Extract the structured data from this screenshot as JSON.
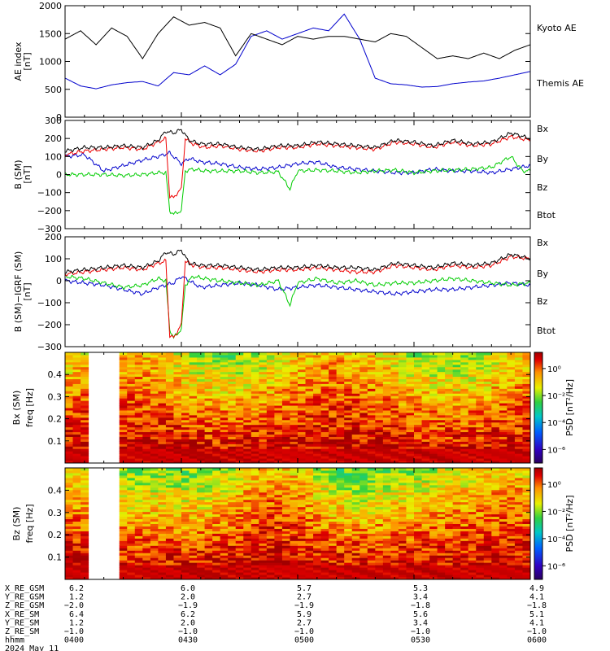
{
  "chart_data": [
    {
      "type": "line",
      "panel": "ae",
      "ylabel": "AE index",
      "yunit": "[nT]",
      "ylim": [
        0,
        2000
      ],
      "yticks": [
        0,
        500,
        1000,
        1500,
        2000
      ],
      "xlim": [
        0,
        120
      ],
      "series": [
        {
          "name": "Kyoto AE",
          "color": "#0000cc",
          "x": [
            0,
            4,
            8,
            12,
            16,
            20,
            24,
            28,
            32,
            36,
            40,
            44,
            48,
            52,
            56,
            60,
            64,
            68,
            72,
            76,
            80,
            84,
            88,
            92,
            96,
            100,
            104,
            108,
            112,
            116,
            120
          ],
          "y": [
            700,
            560,
            510,
            580,
            620,
            640,
            560,
            800,
            760,
            920,
            760,
            950,
            1450,
            1550,
            1400,
            1500,
            1600,
            1550,
            1850,
            1400,
            700,
            600,
            580,
            540,
            550,
            600,
            630,
            650,
            700,
            760,
            820
          ]
        },
        {
          "name": "Themis AE",
          "color": "#000000",
          "x": [
            0,
            4,
            8,
            12,
            16,
            20,
            24,
            28,
            32,
            36,
            40,
            44,
            48,
            52,
            56,
            60,
            64,
            68,
            72,
            76,
            80,
            84,
            88,
            92,
            96,
            100,
            104,
            108,
            112,
            116,
            120
          ],
          "y": [
            1400,
            1550,
            1300,
            1600,
            1450,
            1050,
            1500,
            1800,
            1650,
            1700,
            1600,
            1100,
            1500,
            1400,
            1300,
            1450,
            1400,
            1450,
            1450,
            1400,
            1350,
            1500,
            1450,
            1250,
            1050,
            1100,
            1050,
            1150,
            1050,
            1200,
            1300
          ]
        }
      ]
    },
    {
      "type": "line",
      "panel": "bsm",
      "ylabel": "B (SM)",
      "yunit": "[nT]",
      "ylim": [
        -300,
        300
      ],
      "yticks": [
        -300,
        -200,
        -100,
        0,
        100,
        200,
        300
      ],
      "xlim": [
        0,
        120
      ],
      "series": [
        {
          "name": "Bx",
          "color": "#0000cc",
          "x": [
            0,
            5,
            10,
            15,
            20,
            24,
            27,
            29,
            30,
            32,
            35,
            40,
            45,
            50,
            55,
            60,
            65,
            70,
            75,
            80,
            85,
            90,
            95,
            100,
            105,
            110,
            115,
            120
          ],
          "y": [
            100,
            110,
            20,
            50,
            80,
            100,
            120,
            80,
            60,
            90,
            70,
            60,
            40,
            30,
            40,
            60,
            70,
            40,
            30,
            20,
            10,
            10,
            30,
            20,
            20,
            10,
            30,
            50
          ]
        },
        {
          "name": "By",
          "color": "#00cc00",
          "x": [
            0,
            5,
            10,
            15,
            20,
            24,
            26,
            27,
            28,
            29,
            30,
            31,
            33,
            36,
            40,
            45,
            50,
            55,
            58,
            60,
            65,
            70,
            75,
            80,
            85,
            90,
            95,
            100,
            105,
            110,
            115,
            118,
            120
          ],
          "y": [
            0,
            0,
            0,
            -5,
            0,
            10,
            10,
            -200,
            -220,
            -210,
            -200,
            20,
            30,
            20,
            20,
            20,
            10,
            15,
            -80,
            20,
            25,
            20,
            10,
            20,
            25,
            10,
            20,
            25,
            30,
            40,
            100,
            20,
            20
          ]
        },
        {
          "name": "Bz",
          "color": "#ee0000",
          "x": [
            0,
            5,
            10,
            15,
            20,
            24,
            26,
            27,
            28,
            29,
            30,
            31,
            33,
            36,
            40,
            45,
            50,
            55,
            60,
            65,
            70,
            75,
            80,
            85,
            90,
            95,
            100,
            105,
            110,
            115,
            120
          ],
          "y": [
            110,
            130,
            140,
            150,
            140,
            180,
            200,
            -120,
            -130,
            -100,
            -80,
            200,
            170,
            150,
            160,
            140,
            130,
            150,
            150,
            170,
            160,
            150,
            140,
            180,
            170,
            150,
            180,
            160,
            170,
            210,
            190
          ]
        },
        {
          "name": "Btot",
          "color": "#000000",
          "x": [
            0,
            5,
            10,
            15,
            20,
            24,
            26,
            28,
            30,
            32,
            35,
            40,
            45,
            50,
            55,
            60,
            65,
            70,
            75,
            80,
            85,
            90,
            95,
            100,
            105,
            110,
            115,
            120
          ],
          "y": [
            130,
            150,
            150,
            160,
            150,
            190,
            240,
            230,
            250,
            190,
            170,
            170,
            150,
            140,
            160,
            160,
            180,
            170,
            160,
            150,
            190,
            180,
            160,
            190,
            170,
            180,
            230,
            200
          ]
        }
      ]
    },
    {
      "type": "line",
      "panel": "bigrf",
      "ylabel": "B (SM)−IGRF (SM)",
      "yunit": "[nT]",
      "ylim": [
        -300,
        200
      ],
      "yticks": [
        -300,
        -200,
        -100,
        0,
        100,
        200
      ],
      "xlim": [
        0,
        120
      ],
      "series": [
        {
          "name": "Bx",
          "color": "#0000cc",
          "x": [
            0,
            5,
            10,
            15,
            20,
            24,
            26,
            28,
            30,
            32,
            35,
            40,
            45,
            50,
            55,
            60,
            65,
            70,
            75,
            80,
            85,
            90,
            95,
            100,
            105,
            110,
            115,
            120
          ],
          "y": [
            0,
            -10,
            -20,
            -40,
            -60,
            -30,
            -20,
            -10,
            20,
            0,
            -30,
            -20,
            -10,
            -20,
            -40,
            -30,
            -20,
            -30,
            -40,
            -50,
            -60,
            -50,
            -40,
            -40,
            -30,
            -20,
            -10,
            -20
          ]
        },
        {
          "name": "By",
          "color": "#00cc00",
          "x": [
            0,
            5,
            10,
            15,
            20,
            24,
            26,
            27,
            28,
            29,
            30,
            31,
            33,
            36,
            40,
            45,
            50,
            55,
            58,
            60,
            65,
            70,
            75,
            80,
            85,
            90,
            95,
            100,
            105,
            110,
            115,
            120
          ],
          "y": [
            20,
            10,
            -10,
            -30,
            -20,
            10,
            0,
            -220,
            -260,
            -240,
            -220,
            -20,
            20,
            10,
            0,
            -10,
            -20,
            0,
            -110,
            -10,
            10,
            -10,
            0,
            -20,
            -10,
            -10,
            0,
            10,
            0,
            -10,
            -20,
            -10
          ]
        },
        {
          "name": "Bz",
          "color": "#ee0000",
          "x": [
            0,
            5,
            10,
            15,
            20,
            24,
            26,
            27,
            28,
            29,
            30,
            31,
            33,
            36,
            40,
            45,
            50,
            55,
            60,
            65,
            70,
            75,
            80,
            85,
            90,
            95,
            100,
            105,
            110,
            115,
            120
          ],
          "y": [
            30,
            40,
            50,
            60,
            50,
            80,
            90,
            -250,
            -260,
            -230,
            -200,
            90,
            70,
            60,
            60,
            50,
            40,
            50,
            50,
            60,
            50,
            40,
            40,
            70,
            60,
            50,
            70,
            60,
            70,
            110,
            100
          ]
        },
        {
          "name": "Btot",
          "color": "#000000",
          "x": [
            0,
            5,
            10,
            15,
            20,
            24,
            26,
            28,
            30,
            32,
            35,
            40,
            45,
            50,
            55,
            60,
            65,
            70,
            75,
            80,
            85,
            90,
            95,
            100,
            105,
            110,
            115,
            120
          ],
          "y": [
            40,
            50,
            60,
            70,
            60,
            90,
            130,
            120,
            140,
            80,
            70,
            70,
            60,
            50,
            60,
            60,
            70,
            60,
            60,
            50,
            80,
            70,
            60,
            80,
            70,
            80,
            120,
            100
          ]
        }
      ]
    },
    {
      "type": "heatmap",
      "panel": "bxpsd",
      "ylabel": "Bx (SM)",
      "ylabel2": "freq [Hz]",
      "ylim": [
        0,
        0.5
      ],
      "yticks": [
        0.1,
        0.2,
        0.3,
        0.4
      ],
      "xlim": [
        0,
        120
      ],
      "gap": [
        6,
        13
      ],
      "colorbar_label": "PSD [nT²/Hz]",
      "colorbar_ticks": [
        "10⁰",
        "10⁻²",
        "10⁻⁴",
        "10⁻⁶"
      ],
      "colorbar_tick_exp": [
        0,
        -2,
        -4,
        -6
      ],
      "colorbar_range": [
        -7,
        1.2
      ],
      "colorscale": "rainbow"
    },
    {
      "type": "heatmap",
      "panel": "bzpsd",
      "ylabel": "Bz (SM)",
      "ylabel2": "freq [Hz]",
      "ylim": [
        0,
        0.5
      ],
      "yticks": [
        0.1,
        0.2,
        0.3,
        0.4
      ],
      "xlim": [
        0,
        120
      ],
      "gap": [
        6,
        13
      ],
      "colorbar_label": "PSD [nT²/Hz]",
      "colorbar_ticks": [
        "10⁰",
        "10⁻²",
        "10⁻⁴",
        "10⁻⁶"
      ],
      "colorbar_tick_exp": [
        0,
        -2,
        -4,
        -6
      ],
      "colorbar_range": [
        -7,
        1.2
      ],
      "colorscale": "rainbow"
    }
  ],
  "legend_ae": [
    "Kyoto AE",
    "Themis AE"
  ],
  "legend_b": [
    "Bx",
    "By",
    "Bz",
    "Btot"
  ],
  "xtick_positions": [
    0,
    30,
    60,
    90,
    120
  ],
  "ephemeris_labels": [
    "X_RE_GSM",
    "Y_RE_GSM",
    "Z_RE_GSM",
    "X_RE_SM",
    "Y_RE_SM",
    "Z_RE_SM",
    "hhmm"
  ],
  "ephemeris_values": [
    [
      "6.2",
      "6.0",
      "5.7",
      "5.3",
      "4.9"
    ],
    [
      "1.2",
      "2.0",
      "2.7",
      "3.4",
      "4.1"
    ],
    [
      "−2.0",
      "−1.9",
      "−1.9",
      "−1.8",
      "−1.8"
    ],
    [
      "6.4",
      "6.2",
      "5.9",
      "5.6",
      "5.1"
    ],
    [
      "1.2",
      "2.0",
      "2.7",
      "3.4",
      "4.1"
    ],
    [
      "−1.0",
      "−1.0",
      "−1.0",
      "−1.0",
      "−1.0"
    ],
    [
      "0400",
      "0430",
      "0500",
      "0530",
      "0600"
    ]
  ],
  "date_label": "2024 May 11"
}
